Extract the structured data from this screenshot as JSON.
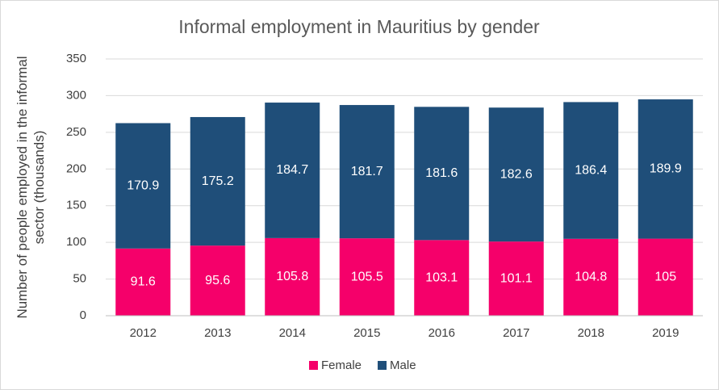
{
  "chart_data": {
    "type": "stacked_bar",
    "title": "Informal employment in Mauritius by gender",
    "y_label": "Number of people employed in the informal sector (thousands)",
    "categories": [
      "2012",
      "2013",
      "2014",
      "2015",
      "2016",
      "2017",
      "2018",
      "2019"
    ],
    "series": [
      {
        "name": "Female",
        "color": "#f5006a",
        "values": [
          91.6,
          95.6,
          105.8,
          105.5,
          103.1,
          101.1,
          104.8,
          105
        ]
      },
      {
        "name": "Male",
        "color": "#1f4e79",
        "values": [
          170.9,
          175.2,
          184.7,
          181.7,
          181.6,
          182.6,
          186.4,
          189.9
        ]
      }
    ],
    "ylim": [
      0,
      350
    ],
    "yticks": [
      0,
      50,
      100,
      150,
      200,
      250,
      300,
      350
    ],
    "grid": true,
    "legend": "bottom"
  }
}
